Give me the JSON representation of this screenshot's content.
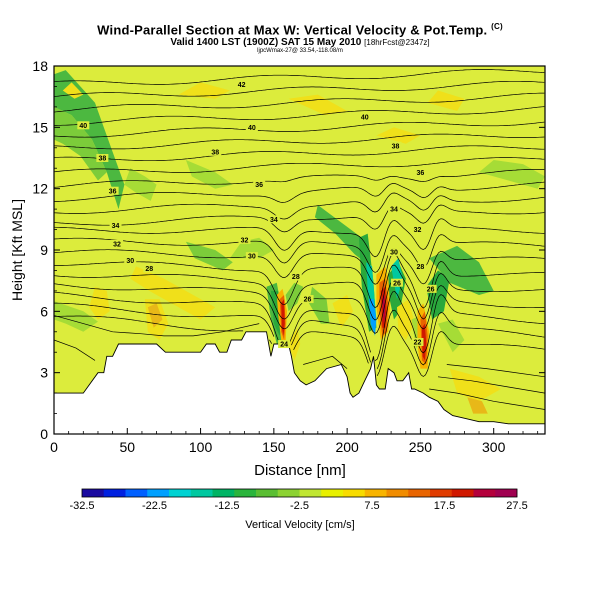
{
  "chart_data": {
    "type": "heatmap",
    "title": "Wind-Parallel Section at Max W: Vertical Velocity & Pot.Temp.",
    "title_mark": "(C)",
    "subtitle_main": "Valid 1400 LST (1900Z) SAT 15 May 2010",
    "subtitle_tag": "[18hrFcst@2347z]",
    "subtitle_small": "ljpcWmax-27@ 33.54,-118.08/m",
    "xlabel": "Distance [nm]",
    "ylabel": "Height [Kft MSL]",
    "xlim": [
      0,
      335
    ],
    "ylim": [
      0,
      18
    ],
    "x_ticks": [
      "0",
      "50",
      "100",
      "150",
      "200",
      "250",
      "300"
    ],
    "y_ticks": [
      "0",
      "3",
      "6",
      "9",
      "12",
      "15",
      "18"
    ],
    "colorbar": {
      "label": "Vertical Velocity [cm/s]",
      "tick_labels": [
        "-32.5",
        "-22.5",
        "-12.5",
        "-2.5",
        "7.5",
        "17.5",
        "27.5"
      ],
      "colors": [
        "#1a0aa0",
        "#0020e0",
        "#0060ff",
        "#00a0ff",
        "#00d2d2",
        "#00c8a0",
        "#00b464",
        "#2ab43c",
        "#5abe32",
        "#8cd232",
        "#c0e632",
        "#e8f000",
        "#f8dc00",
        "#f8b400",
        "#f08c00",
        "#e86400",
        "#e03c00",
        "#d01800",
        "#b4003c",
        "#a00050"
      ]
    },
    "theta_contour_labels": [
      {
        "text": "42",
        "x": 128,
        "y": 17.1
      },
      {
        "text": "40",
        "x": 20,
        "y": 15.1
      },
      {
        "text": "40",
        "x": 135,
        "y": 15.0
      },
      {
        "text": "40",
        "x": 212,
        "y": 15.5
      },
      {
        "text": "38",
        "x": 33,
        "y": 13.5
      },
      {
        "text": "38",
        "x": 110,
        "y": 13.8
      },
      {
        "text": "38",
        "x": 233,
        "y": 14.1
      },
      {
        "text": "36",
        "x": 40,
        "y": 11.9
      },
      {
        "text": "36",
        "x": 140,
        "y": 12.2
      },
      {
        "text": "36",
        "x": 250,
        "y": 12.8
      },
      {
        "text": "34",
        "x": 42,
        "y": 10.2
      },
      {
        "text": "34",
        "x": 150,
        "y": 10.5
      },
      {
        "text": "34",
        "x": 232,
        "y": 11.0
      },
      {
        "text": "32",
        "x": 43,
        "y": 9.3
      },
      {
        "text": "32",
        "x": 130,
        "y": 9.5
      },
      {
        "text": "32",
        "x": 248,
        "y": 10.0
      },
      {
        "text": "30",
        "x": 52,
        "y": 8.5
      },
      {
        "text": "30",
        "x": 135,
        "y": 8.7
      },
      {
        "text": "30",
        "x": 232,
        "y": 8.9
      },
      {
        "text": "28",
        "x": 65,
        "y": 8.1
      },
      {
        "text": "28",
        "x": 165,
        "y": 7.7
      },
      {
        "text": "28",
        "x": 250,
        "y": 8.2
      },
      {
        "text": "26",
        "x": 173,
        "y": 6.6
      },
      {
        "text": "26",
        "x": 234,
        "y": 7.4
      },
      {
        "text": "26",
        "x": 257,
        "y": 7.1
      },
      {
        "text": "24",
        "x": 157,
        "y": 4.4
      },
      {
        "text": "22",
        "x": 248,
        "y": 4.5
      }
    ]
  }
}
